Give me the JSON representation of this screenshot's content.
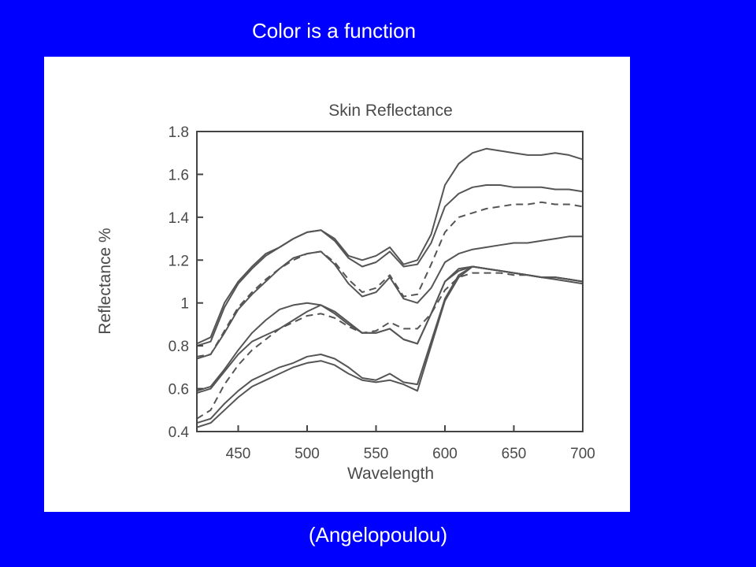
{
  "slide": {
    "title": "Color is a function",
    "caption": "(Angelopoulou)",
    "background_color": "#0000ff",
    "text_color": "#ffffff"
  },
  "chart_data": {
    "type": "line",
    "title": "Skin Reflectance",
    "xlabel": "Wavelength",
    "ylabel": "Reflectance %",
    "xlim": [
      420,
      700
    ],
    "ylim": [
      0.4,
      1.8
    ],
    "x_ticks": [
      450,
      500,
      550,
      600,
      650,
      700
    ],
    "y_ticks": [
      0.4,
      0.6,
      0.8,
      1,
      1.2,
      1.4,
      1.6,
      1.8
    ],
    "y_tick_labels": [
      "0.4",
      "0.6",
      "0.8",
      "1",
      "1.2",
      "1.4",
      "1.6",
      "1.8"
    ],
    "grid": false,
    "line_color": "#555555",
    "x": [
      420,
      430,
      440,
      450,
      460,
      470,
      480,
      490,
      500,
      510,
      520,
      530,
      540,
      550,
      560,
      570,
      580,
      590,
      600,
      610,
      620,
      630,
      640,
      650,
      660,
      670,
      680,
      690,
      700
    ],
    "series": [
      {
        "style": "solid",
        "values": [
          0.81,
          0.84,
          1.0,
          1.1,
          1.17,
          1.23,
          1.26,
          1.3,
          1.33,
          1.34,
          1.3,
          1.22,
          1.2,
          1.22,
          1.26,
          1.18,
          1.2,
          1.32,
          1.55,
          1.65,
          1.7,
          1.72,
          1.71,
          1.7,
          1.69,
          1.69,
          1.7,
          1.69,
          1.67
        ]
      },
      {
        "style": "solid",
        "values": [
          0.8,
          0.82,
          0.98,
          1.09,
          1.16,
          1.22,
          1.26,
          1.3,
          1.33,
          1.34,
          1.29,
          1.21,
          1.17,
          1.19,
          1.24,
          1.17,
          1.18,
          1.28,
          1.45,
          1.51,
          1.54,
          1.55,
          1.55,
          1.54,
          1.54,
          1.54,
          1.53,
          1.53,
          1.52
        ]
      },
      {
        "style": "dashed",
        "values": [
          0.75,
          0.76,
          0.87,
          0.98,
          1.05,
          1.11,
          1.16,
          1.2,
          1.23,
          1.24,
          1.19,
          1.11,
          1.05,
          1.07,
          1.13,
          1.03,
          1.04,
          1.18,
          1.33,
          1.4,
          1.42,
          1.44,
          1.45,
          1.46,
          1.46,
          1.47,
          1.46,
          1.46,
          1.45
        ]
      },
      {
        "style": "solid",
        "values": [
          0.74,
          0.76,
          0.86,
          0.97,
          1.04,
          1.1,
          1.16,
          1.21,
          1.23,
          1.24,
          1.18,
          1.09,
          1.03,
          1.05,
          1.12,
          1.02,
          1.0,
          1.07,
          1.19,
          1.23,
          1.25,
          1.26,
          1.27,
          1.28,
          1.28,
          1.29,
          1.3,
          1.31,
          1.31
        ]
      },
      {
        "style": "solid",
        "values": [
          0.59,
          0.61,
          0.69,
          0.78,
          0.86,
          0.92,
          0.97,
          0.99,
          1.0,
          0.99,
          0.96,
          0.91,
          0.86,
          0.86,
          0.88,
          0.83,
          0.81,
          0.95,
          1.1,
          1.15,
          1.17,
          1.16,
          1.15,
          1.14,
          1.13,
          1.12,
          1.11,
          1.1,
          1.09
        ]
      },
      {
        "style": "dashed",
        "values": [
          0.46,
          0.5,
          0.62,
          0.71,
          0.78,
          0.83,
          0.88,
          0.91,
          0.94,
          0.95,
          0.93,
          0.89,
          0.86,
          0.87,
          0.91,
          0.88,
          0.88,
          0.95,
          1.06,
          1.12,
          1.14,
          1.14,
          1.14,
          1.13,
          1.13,
          1.12,
          1.12,
          1.11,
          1.1
        ]
      },
      {
        "style": "solid",
        "values": [
          0.58,
          0.6,
          0.68,
          0.76,
          0.82,
          0.85,
          0.88,
          0.92,
          0.96,
          0.99,
          0.95,
          0.9,
          0.86,
          0.86,
          0.88,
          0.83,
          0.81,
          0.95,
          1.1,
          1.16,
          1.17,
          1.16,
          1.15,
          1.14,
          1.13,
          1.12,
          1.12,
          1.11,
          1.1
        ]
      },
      {
        "style": "solid",
        "values": [
          0.44,
          0.46,
          0.53,
          0.59,
          0.64,
          0.67,
          0.7,
          0.72,
          0.75,
          0.76,
          0.74,
          0.7,
          0.65,
          0.64,
          0.67,
          0.63,
          0.62,
          0.82,
          1.02,
          1.13,
          1.17,
          1.16,
          1.15,
          1.14,
          1.13,
          1.12,
          1.12,
          1.11,
          1.1
        ]
      },
      {
        "style": "solid",
        "values": [
          0.42,
          0.44,
          0.5,
          0.56,
          0.61,
          0.64,
          0.67,
          0.7,
          0.72,
          0.73,
          0.71,
          0.67,
          0.64,
          0.63,
          0.64,
          0.62,
          0.59,
          0.8,
          1.01,
          1.12,
          1.17,
          1.16,
          1.15,
          1.14,
          1.13,
          1.12,
          1.12,
          1.11,
          1.1
        ]
      }
    ]
  }
}
